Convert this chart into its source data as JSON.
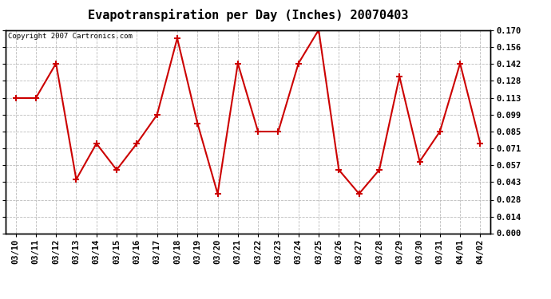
{
  "title": "Evapotranspiration per Day (Inches) 20070403",
  "copyright_text": "Copyright 2007 Cartronics.com",
  "dates": [
    "03/10",
    "03/11",
    "03/12",
    "03/13",
    "03/14",
    "03/15",
    "03/16",
    "03/17",
    "03/18",
    "03/19",
    "03/20",
    "03/21",
    "03/22",
    "03/23",
    "03/24",
    "03/25",
    "03/26",
    "03/27",
    "03/28",
    "03/29",
    "03/30",
    "03/31",
    "04/01",
    "04/02"
  ],
  "values": [
    0.113,
    0.113,
    0.142,
    0.045,
    0.075,
    0.053,
    0.075,
    0.099,
    0.163,
    0.092,
    0.033,
    0.142,
    0.085,
    0.085,
    0.142,
    0.17,
    0.053,
    0.033,
    0.053,
    0.131,
    0.06,
    0.085,
    0.142,
    0.075
  ],
  "line_color": "#cc0000",
  "marker": "+",
  "marker_size": 6,
  "marker_linewidth": 1.5,
  "line_width": 1.5,
  "ylim": [
    0.0,
    0.17
  ],
  "yticks": [
    0.0,
    0.014,
    0.028,
    0.043,
    0.057,
    0.071,
    0.085,
    0.099,
    0.113,
    0.128,
    0.142,
    0.156,
    0.17
  ],
  "background_color": "#ffffff",
  "plot_bg_color": "#ffffff",
  "grid_color": "#bbbbbb",
  "title_fontsize": 11,
  "copyright_fontsize": 6.5,
  "tick_fontsize": 7.5,
  "label_fontweight": "bold"
}
